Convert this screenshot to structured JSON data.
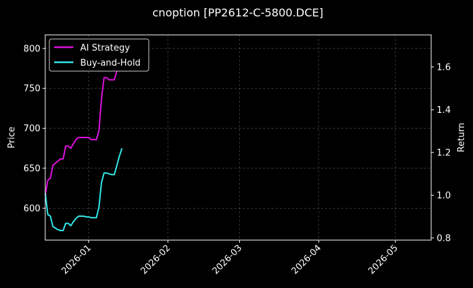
{
  "chart_data": {
    "type": "line",
    "title": "cnoption [PP2612-C-5800.DCE]",
    "ylabel": "Price",
    "y2label": "Return",
    "xlim": [
      "2025-12-15",
      "2026-05-15"
    ],
    "ylim": [
      560,
      817
    ],
    "y2lim": [
      0.79,
      1.75
    ],
    "x_ticks": [
      "2026-01",
      "2026-02",
      "2026-03",
      "2026-04",
      "2026-05"
    ],
    "y_ticks": [
      600,
      650,
      700,
      750,
      800
    ],
    "y2_ticks": [
      "0.8",
      "1.0",
      "1.2",
      "1.4",
      "1.6"
    ],
    "grid": true,
    "legend": "top-left",
    "colors": {
      "ai": "#e010e0",
      "bh": "#30e8e8",
      "background": "#000000"
    },
    "x": [
      "2025-12-15",
      "2025-12-16",
      "2025-12-17",
      "2025-12-18",
      "2025-12-19",
      "2025-12-20",
      "2025-12-21",
      "2025-12-22",
      "2025-12-23",
      "2025-12-24",
      "2025-12-25",
      "2025-12-26",
      "2025-12-27",
      "2025-12-28",
      "2025-12-29",
      "2025-12-30",
      "2025-12-31",
      "2026-01-01",
      "2026-01-02",
      "2026-01-03",
      "2026-01-04",
      "2026-01-05",
      "2026-01-06",
      "2026-01-07",
      "2026-01-08",
      "2026-01-09",
      "2026-01-10",
      "2026-01-11",
      "2026-01-12",
      "2026-01-13",
      "2026-01-14"
    ],
    "series": [
      {
        "name": "AI Strategy",
        "axis": "right",
        "values": [
          1.0,
          1.07,
          1.08,
          1.14,
          1.15,
          1.16,
          1.17,
          1.17,
          1.23,
          1.23,
          1.22,
          1.24,
          1.26,
          1.27,
          1.27,
          1.27,
          1.27,
          1.27,
          1.26,
          1.26,
          1.26,
          1.3,
          1.45,
          1.55,
          1.55,
          1.54,
          1.54,
          1.54,
          1.58,
          1.65,
          1.72
        ]
      },
      {
        "name": "Buy-and-Hold",
        "axis": "left",
        "values": [
          619,
          592,
          590,
          577,
          575,
          573,
          572,
          572,
          581,
          581,
          578,
          583,
          587,
          590,
          590,
          590,
          589,
          589,
          588,
          588,
          588,
          601,
          632,
          644,
          644,
          643,
          642,
          642,
          653,
          665,
          675
        ]
      }
    ]
  }
}
